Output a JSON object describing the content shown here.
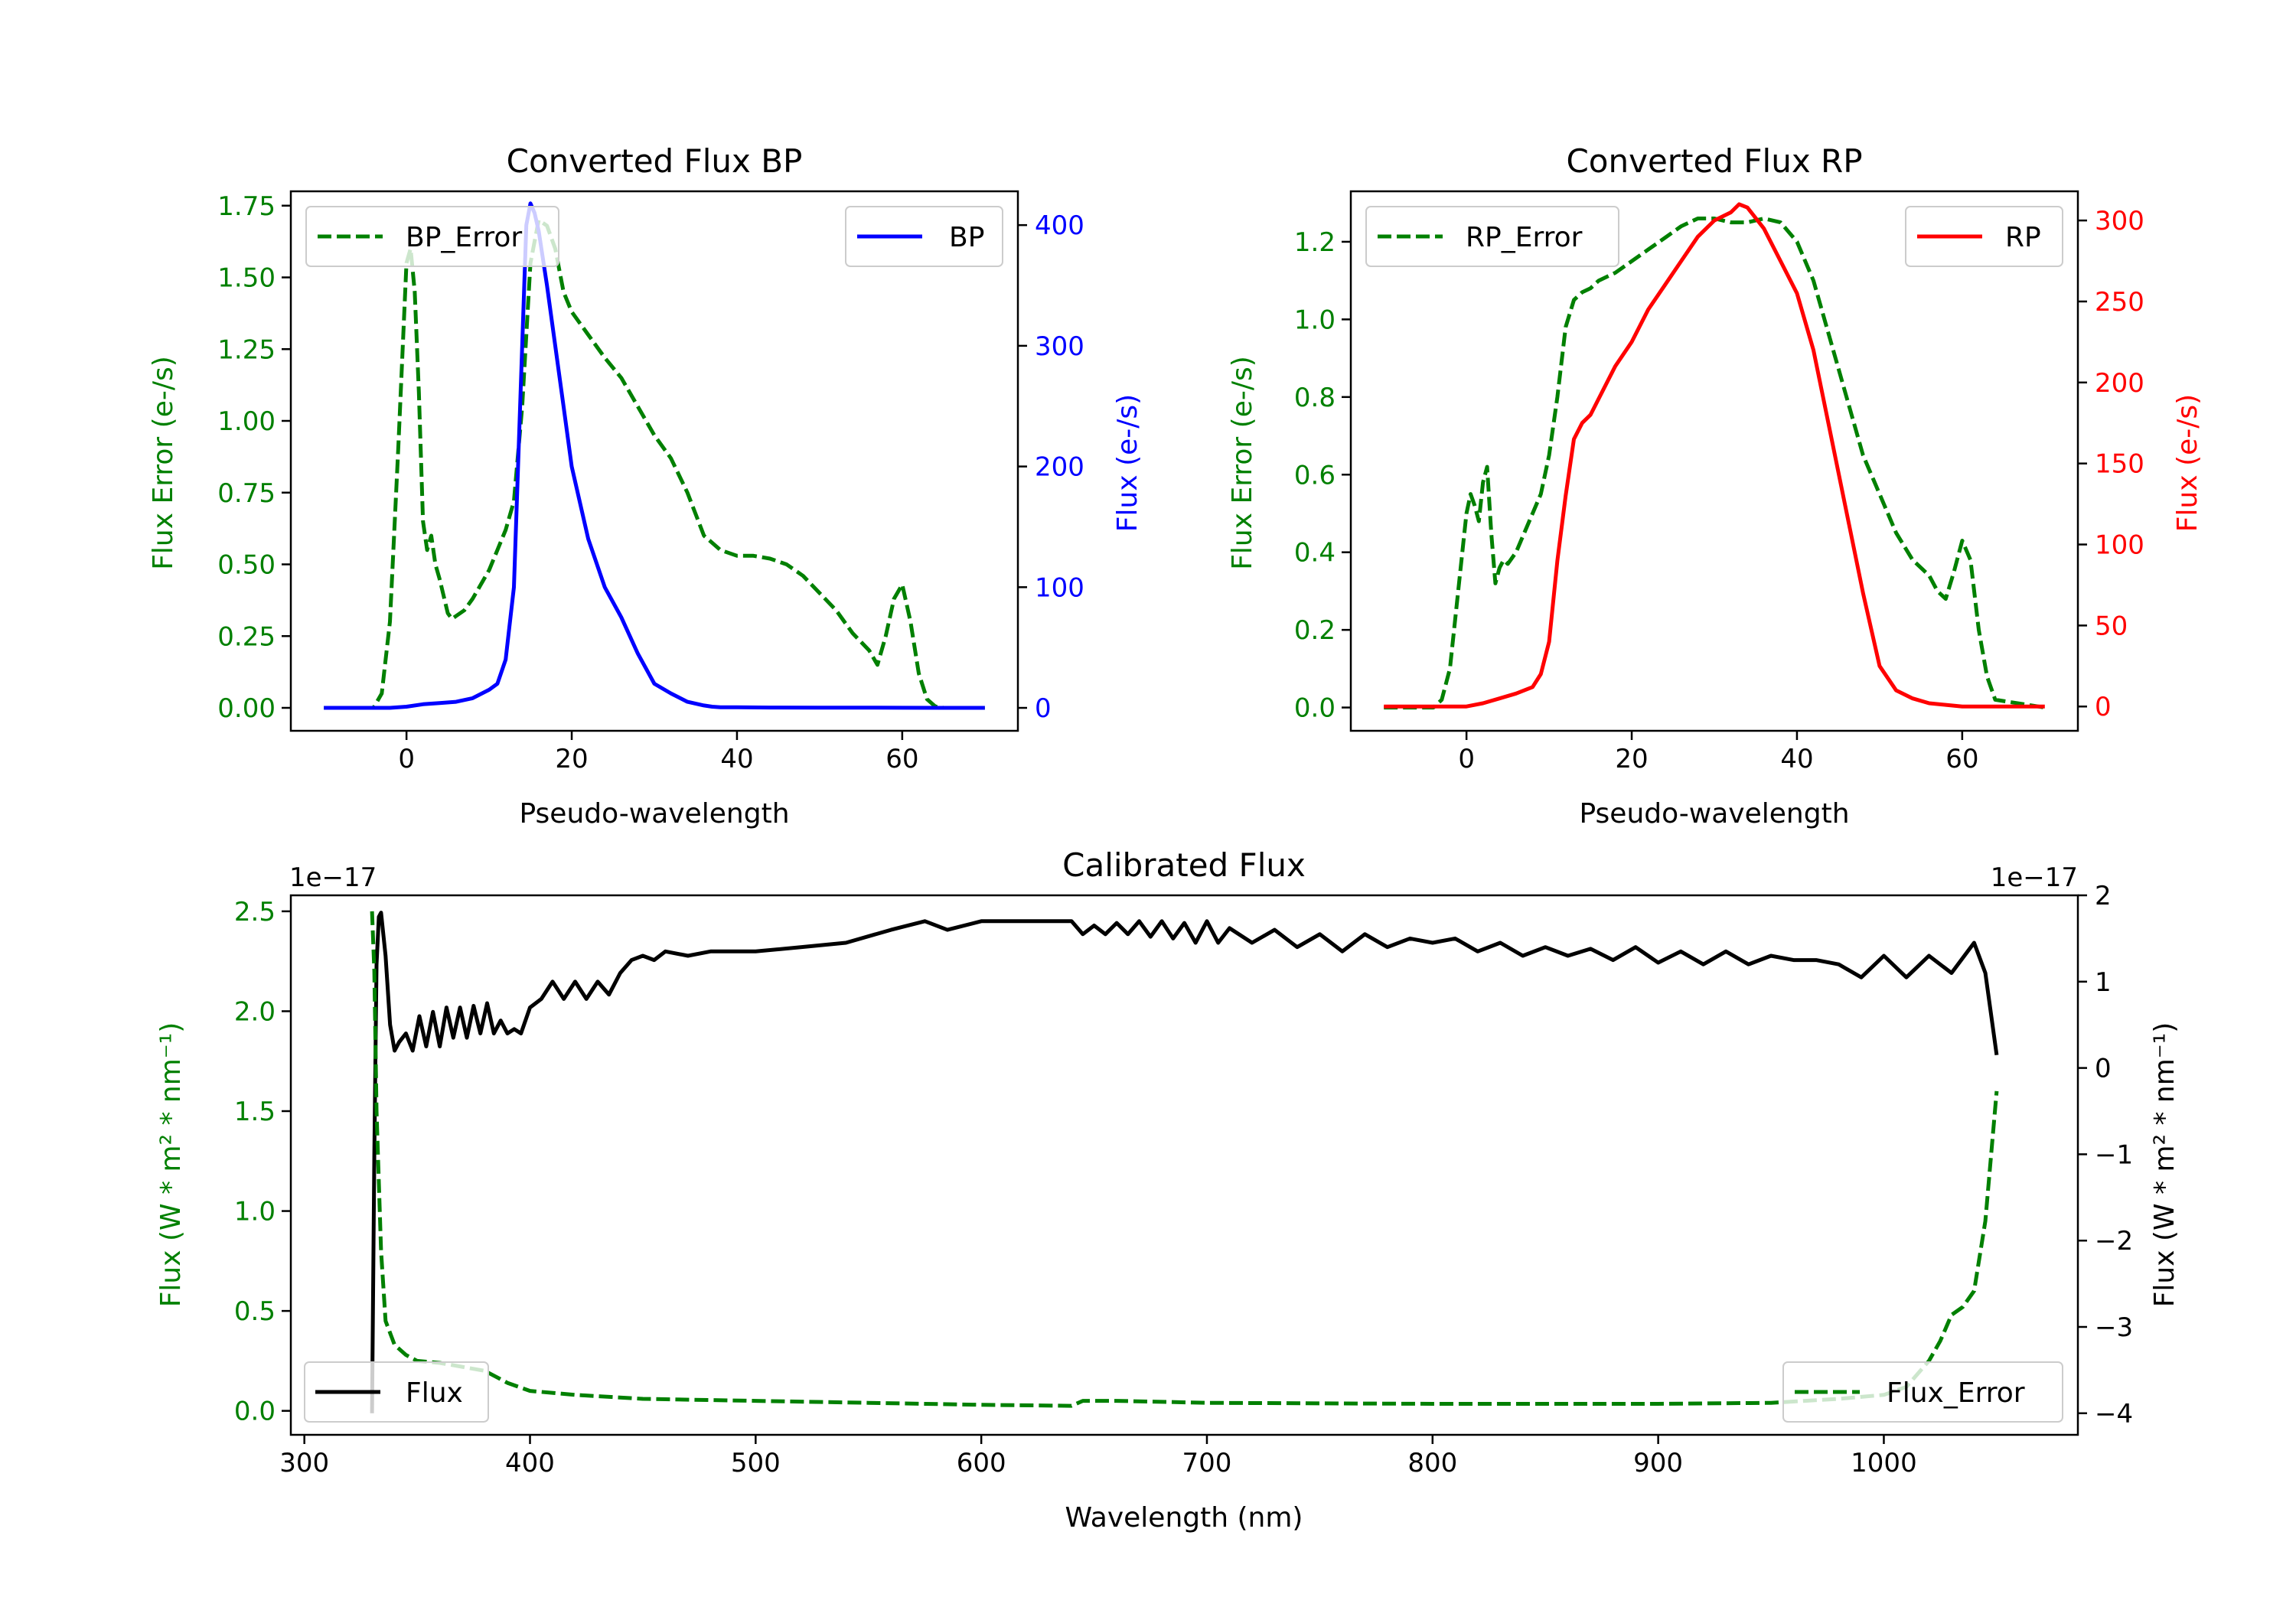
{
  "chart_data": [
    {
      "id": "bp",
      "type": "line",
      "title": "Converted Flux BP",
      "xlabel": "Pseudo-wavelength",
      "y_left_label": "Flux Error (e-/s)",
      "y_right_label": "Flux (e-/s)",
      "xlim": [
        -14,
        74
      ],
      "y_left_lim": [
        -0.08,
        1.8
      ],
      "y_right_lim": [
        -19,
        428
      ],
      "x_ticks": [
        0,
        20,
        40,
        60
      ],
      "y_left_ticks": [
        "0.00",
        "0.25",
        "0.50",
        "0.75",
        "1.00",
        "1.25",
        "1.50",
        "1.75"
      ],
      "y_right_ticks": [
        "0",
        "100",
        "200",
        "300",
        "400"
      ],
      "colors": {
        "left": "#008000",
        "right": "#0000ff",
        "axis": "#000000"
      },
      "series": [
        {
          "name": "BP_Error",
          "axis": "left",
          "style": "dashed",
          "color": "#008000",
          "x": [
            -10,
            -4,
            -3,
            -2,
            -1,
            0,
            0.5,
            1,
            1.5,
            2,
            2.5,
            3,
            3.5,
            4,
            5,
            5.5,
            6,
            7,
            8,
            9,
            10,
            11,
            12,
            13,
            14,
            15,
            16,
            17,
            18,
            19,
            20,
            22,
            24,
            26,
            28,
            30,
            32,
            34,
            36,
            38,
            40,
            42,
            44,
            46,
            48,
            50,
            52,
            54,
            56,
            57,
            58,
            59,
            60,
            61,
            62,
            63,
            64,
            65,
            70
          ],
          "y": [
            0,
            0,
            0.05,
            0.3,
            0.9,
            1.55,
            1.6,
            1.45,
            1.1,
            0.65,
            0.55,
            0.6,
            0.5,
            0.45,
            0.33,
            0.31,
            0.32,
            0.34,
            0.38,
            0.43,
            0.48,
            0.55,
            0.62,
            0.72,
            1.05,
            1.55,
            1.7,
            1.68,
            1.6,
            1.45,
            1.38,
            1.3,
            1.22,
            1.15,
            1.05,
            0.95,
            0.87,
            0.75,
            0.6,
            0.55,
            0.53,
            0.53,
            0.52,
            0.5,
            0.46,
            0.4,
            0.34,
            0.26,
            0.2,
            0.15,
            0.25,
            0.38,
            0.43,
            0.3,
            0.12,
            0.03,
            0.005,
            0,
            0
          ]
        },
        {
          "name": "BP",
          "axis": "right",
          "style": "solid",
          "color": "#0000ff",
          "x": [
            -10,
            -4,
            -2,
            0,
            2,
            4,
            6,
            8,
            10,
            11,
            12,
            13,
            14,
            14.5,
            15,
            15.5,
            16,
            17,
            18,
            19,
            20,
            21,
            22,
            24,
            26,
            28,
            30,
            32,
            34,
            36,
            37,
            38,
            40,
            44,
            50,
            56,
            60,
            65,
            70
          ],
          "y": [
            0,
            0,
            0,
            1,
            3,
            4,
            5,
            8,
            15,
            20,
            40,
            100,
            300,
            400,
            418,
            410,
            395,
            350,
            300,
            250,
            200,
            170,
            140,
            100,
            75,
            45,
            20,
            12,
            5,
            2,
            1,
            0.5,
            0.5,
            0.3,
            0.2,
            0.2,
            0.1,
            0,
            0
          ]
        }
      ],
      "legend": [
        {
          "label": "BP_Error",
          "position": "upper left"
        },
        {
          "label": "BP",
          "position": "upper right"
        }
      ]
    },
    {
      "id": "rp",
      "type": "line",
      "title": "Converted Flux RP",
      "xlabel": "Pseudo-wavelength",
      "y_left_label": "Flux Error (e-/s)",
      "y_right_label": "Flux (e-/s)",
      "xlim": [
        -14,
        74
      ],
      "y_left_lim": [
        -0.06,
        1.33
      ],
      "y_right_lim": [
        -15,
        318
      ],
      "x_ticks": [
        0,
        20,
        40,
        60
      ],
      "y_left_ticks": [
        "0.0",
        "0.2",
        "0.4",
        "0.6",
        "0.8",
        "1.0",
        "1.2"
      ],
      "y_right_ticks": [
        "0",
        "50",
        "100",
        "150",
        "200",
        "250",
        "300"
      ],
      "colors": {
        "left": "#008000",
        "right": "#ff0000",
        "axis": "#000000"
      },
      "series": [
        {
          "name": "RP_Error",
          "axis": "right_unused",
          "style": "dashed",
          "color": "#008000",
          "x": [
            -10,
            -4,
            -3,
            -2,
            -1,
            0,
            0.5,
            1,
            1.5,
            2,
            2.5,
            3,
            3.5,
            4,
            4.5,
            5,
            6,
            7,
            8,
            9,
            10,
            11,
            12,
            13,
            14,
            15,
            16,
            18,
            20,
            22,
            24,
            26,
            28,
            29,
            30,
            32,
            34,
            36,
            38,
            40,
            42,
            44,
            46,
            48,
            50,
            52,
            54,
            56,
            57,
            58,
            59,
            60,
            61,
            62,
            63,
            64,
            70
          ],
          "y": [
            0,
            0,
            0.02,
            0.1,
            0.3,
            0.5,
            0.55,
            0.52,
            0.48,
            0.58,
            0.62,
            0.45,
            0.32,
            0.36,
            0.38,
            0.37,
            0.4,
            0.45,
            0.5,
            0.55,
            0.65,
            0.8,
            0.98,
            1.05,
            1.07,
            1.08,
            1.1,
            1.12,
            1.15,
            1.18,
            1.21,
            1.24,
            1.26,
            1.26,
            1.26,
            1.25,
            1.25,
            1.26,
            1.25,
            1.2,
            1.1,
            0.95,
            0.8,
            0.65,
            0.55,
            0.45,
            0.38,
            0.34,
            0.3,
            0.28,
            0.35,
            0.43,
            0.38,
            0.2,
            0.08,
            0.02,
            0
          ]
        },
        {
          "name": "RP",
          "axis": "right",
          "style": "solid",
          "color": "#ff0000",
          "x": [
            -10,
            -4,
            -2,
            0,
            2,
            4,
            6,
            8,
            9,
            10,
            11,
            12,
            13,
            14,
            15,
            16,
            18,
            20,
            22,
            24,
            26,
            28,
            30,
            32,
            33,
            34,
            36,
            38,
            40,
            42,
            44,
            46,
            48,
            50,
            52,
            54,
            56,
            58,
            60,
            64,
            70
          ],
          "y": [
            0,
            0,
            0,
            0,
            2,
            5,
            8,
            12,
            20,
            40,
            90,
            130,
            165,
            175,
            180,
            190,
            210,
            225,
            245,
            260,
            275,
            290,
            300,
            305,
            310,
            308,
            295,
            275,
            255,
            220,
            170,
            120,
            70,
            25,
            10,
            5,
            2,
            1,
            0,
            0,
            0
          ]
        }
      ],
      "legend": [
        {
          "label": "RP_Error",
          "position": "upper left"
        },
        {
          "label": "RP",
          "position": "upper right"
        }
      ]
    },
    {
      "id": "cal",
      "type": "line",
      "title": "Calibrated Flux",
      "xlabel": "Wavelength (nm)",
      "y_left_label": "Flux (W * m² * nm⁻¹)",
      "y_right_label": "Flux (W * m² * nm⁻¹)",
      "y_left_offset": "1e−17",
      "y_right_offset": "1e−17",
      "xlim": [
        294,
        1086
      ],
      "y_left_lim": [
        -0.12,
        2.58
      ],
      "y_right_lim": [
        -4.25,
        2
      ],
      "x_ticks": [
        300,
        400,
        500,
        600,
        700,
        800,
        900,
        1000
      ],
      "y_left_ticks": [
        "0.0",
        "0.5",
        "1.0",
        "1.5",
        "2.0",
        "2.5"
      ],
      "y_right_ticks": [
        "−4",
        "−3",
        "−2",
        "−1",
        "0",
        "1",
        "2"
      ],
      "colors": {
        "left": "#008000",
        "right": "#000000",
        "axis": "#000000"
      },
      "series": [
        {
          "name": "Flux",
          "axis": "right",
          "style": "solid",
          "color": "#000000",
          "x": [
            330,
            331,
            332,
            333,
            334,
            336,
            338,
            340,
            342,
            345,
            348,
            351,
            354,
            357,
            360,
            363,
            366,
            369,
            372,
            375,
            378,
            381,
            384,
            387,
            390,
            393,
            396,
            400,
            405,
            410,
            415,
            420,
            425,
            430,
            435,
            440,
            445,
            450,
            455,
            460,
            470,
            480,
            500,
            520,
            540,
            560,
            575,
            585,
            600,
            620,
            640,
            645,
            650,
            655,
            660,
            665,
            670,
            675,
            680,
            685,
            690,
            695,
            700,
            705,
            710,
            720,
            730,
            740,
            750,
            760,
            770,
            780,
            790,
            800,
            810,
            820,
            830,
            840,
            850,
            860,
            870,
            880,
            890,
            900,
            910,
            920,
            930,
            940,
            950,
            960,
            970,
            980,
            990,
            1000,
            1010,
            1020,
            1030,
            1040,
            1045,
            1050
          ],
          "y": [
            -4,
            -1,
            1.2,
            1.75,
            1.8,
            1.3,
            0.5,
            0.2,
            0.3,
            0.4,
            0.2,
            0.6,
            0.25,
            0.65,
            0.25,
            0.7,
            0.35,
            0.7,
            0.35,
            0.72,
            0.4,
            0.75,
            0.4,
            0.55,
            0.4,
            0.45,
            0.4,
            0.7,
            0.8,
            1.0,
            0.8,
            1.0,
            0.8,
            1.0,
            0.85,
            1.1,
            1.25,
            1.3,
            1.25,
            1.35,
            1.3,
            1.35,
            1.35,
            1.4,
            1.45,
            1.6,
            1.7,
            1.6,
            1.7,
            1.7,
            1.7,
            1.55,
            1.65,
            1.55,
            1.68,
            1.55,
            1.7,
            1.52,
            1.7,
            1.5,
            1.68,
            1.45,
            1.7,
            1.45,
            1.62,
            1.45,
            1.6,
            1.4,
            1.55,
            1.35,
            1.55,
            1.4,
            1.5,
            1.45,
            1.5,
            1.35,
            1.45,
            1.3,
            1.4,
            1.3,
            1.38,
            1.25,
            1.4,
            1.22,
            1.35,
            1.2,
            1.35,
            1.2,
            1.3,
            1.25,
            1.25,
            1.2,
            1.05,
            1.3,
            1.05,
            1.3,
            1.1,
            1.45,
            1.1,
            0.15
          ]
        },
        {
          "name": "Flux_Error",
          "axis": "left",
          "style": "dashed",
          "color": "#008000",
          "x": [
            330,
            331,
            332,
            334,
            336,
            340,
            345,
            350,
            360,
            370,
            380,
            390,
            400,
            420,
            450,
            500,
            550,
            600,
            640,
            645,
            660,
            700,
            800,
            900,
            950,
            980,
            1000,
            1010,
            1020,
            1025,
            1030,
            1035,
            1040,
            1045,
            1050
          ],
          "y": [
            2.5,
            2.2,
            1.5,
            0.8,
            0.45,
            0.33,
            0.28,
            0.25,
            0.24,
            0.22,
            0.2,
            0.14,
            0.1,
            0.08,
            0.06,
            0.05,
            0.04,
            0.03,
            0.025,
            0.05,
            0.05,
            0.04,
            0.035,
            0.035,
            0.04,
            0.06,
            0.08,
            0.12,
            0.25,
            0.35,
            0.48,
            0.52,
            0.6,
            0.95,
            1.6
          ]
        }
      ],
      "legend": [
        {
          "label": "Flux",
          "position": "lower left"
        },
        {
          "label": "Flux_Error",
          "position": "lower right"
        }
      ]
    }
  ]
}
